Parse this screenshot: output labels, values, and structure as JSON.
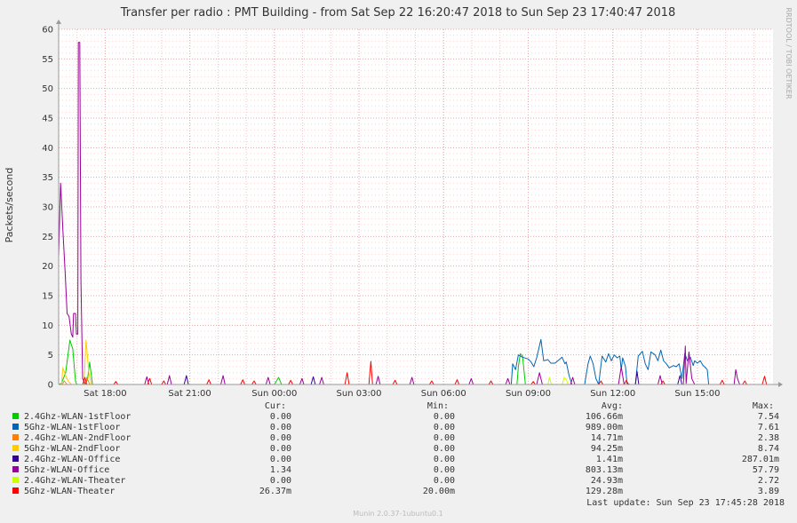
{
  "chart_data": {
    "type": "line",
    "title": "Transfer per radio : PMT Building - from Sat Sep 22 16:20:47 2018 to Sun Sep 23 17:40:47 2018",
    "ylabel": "Packets/second",
    "ylim": [
      0,
      60
    ],
    "yticks": [
      0,
      5,
      10,
      15,
      20,
      25,
      30,
      35,
      40,
      45,
      50,
      55,
      60
    ],
    "xlim": [
      16.35,
      41.68
    ],
    "xticks": [
      {
        "label": "Sat 18:00",
        "hour": 18
      },
      {
        "label": "Sat 21:00",
        "hour": 21
      },
      {
        "label": "Sun 00:00",
        "hour": 24
      },
      {
        "label": "Sun 03:00",
        "hour": 27
      },
      {
        "label": "Sun 06:00",
        "hour": 30
      },
      {
        "label": "Sun 09:00",
        "hour": 33
      },
      {
        "label": "Sun 12:00",
        "hour": 36
      },
      {
        "label": "Sun 15:00",
        "hour": 39
      }
    ],
    "grid": true,
    "series": [
      {
        "name": "2.4Ghz-WLAN-1stFloor",
        "color": "#00cc00",
        "points": [
          [
            16.35,
            0
          ],
          [
            16.45,
            0.2
          ],
          [
            16.6,
            2
          ],
          [
            16.75,
            7.5
          ],
          [
            16.85,
            6
          ],
          [
            16.95,
            0.5
          ],
          [
            17.0,
            0
          ],
          [
            17.3,
            0
          ],
          [
            17.38,
            1
          ],
          [
            17.45,
            3.8
          ],
          [
            17.55,
            0
          ],
          [
            24.0,
            0
          ],
          [
            24.15,
            1.2
          ],
          [
            24.25,
            0
          ],
          [
            32.6,
            0
          ],
          [
            32.65,
            3
          ],
          [
            32.72,
            5.2
          ],
          [
            32.8,
            4.8
          ],
          [
            32.9,
            0
          ],
          [
            41.68,
            0
          ]
        ]
      },
      {
        "name": "5Ghz-WLAN-1stFloor",
        "color": "#0066b3",
        "points": [
          [
            16.35,
            0
          ],
          [
            32.4,
            0
          ],
          [
            32.45,
            3.5
          ],
          [
            32.55,
            2.5
          ],
          [
            32.65,
            5
          ],
          [
            32.8,
            4.6
          ],
          [
            33.0,
            4.3
          ],
          [
            33.1,
            3.8
          ],
          [
            33.2,
            3
          ],
          [
            33.3,
            4.5
          ],
          [
            33.45,
            7.6
          ],
          [
            33.55,
            4
          ],
          [
            33.7,
            4.2
          ],
          [
            33.8,
            3.6
          ],
          [
            33.95,
            3.6
          ],
          [
            34.1,
            4.2
          ],
          [
            34.2,
            4.6
          ],
          [
            34.3,
            3.5
          ],
          [
            34.35,
            3.8
          ],
          [
            34.45,
            1.5
          ],
          [
            34.55,
            0
          ],
          [
            35.0,
            0
          ],
          [
            35.12,
            3.5
          ],
          [
            35.2,
            4.8
          ],
          [
            35.3,
            3.5
          ],
          [
            35.4,
            1
          ],
          [
            35.5,
            0
          ],
          [
            35.62,
            4.8
          ],
          [
            35.75,
            3.8
          ],
          [
            35.85,
            5.2
          ],
          [
            35.95,
            4
          ],
          [
            36.05,
            5
          ],
          [
            36.15,
            4.5
          ],
          [
            36.25,
            4.8
          ],
          [
            36.3,
            2.5
          ],
          [
            36.35,
            4.5
          ],
          [
            36.45,
            3
          ],
          [
            36.5,
            0.2
          ],
          [
            36.6,
            0
          ],
          [
            36.8,
            0
          ],
          [
            36.9,
            4.8
          ],
          [
            37.05,
            5.6
          ],
          [
            37.15,
            3.5
          ],
          [
            37.25,
            2.5
          ],
          [
            37.35,
            5.5
          ],
          [
            37.5,
            5
          ],
          [
            37.6,
            4
          ],
          [
            37.7,
            5.8
          ],
          [
            37.8,
            4
          ],
          [
            37.9,
            3.5
          ],
          [
            38.0,
            2.8
          ],
          [
            38.15,
            3.2
          ],
          [
            38.25,
            3
          ],
          [
            38.35,
            3.5
          ],
          [
            38.45,
            1
          ],
          [
            38.55,
            5.2
          ],
          [
            38.65,
            4
          ],
          [
            38.75,
            4.6
          ],
          [
            38.85,
            3.2
          ],
          [
            38.9,
            4
          ],
          [
            39.0,
            3.6
          ],
          [
            39.1,
            4
          ],
          [
            39.2,
            3.2
          ],
          [
            39.25,
            3
          ],
          [
            39.35,
            2.5
          ],
          [
            39.4,
            0
          ],
          [
            41.68,
            0
          ]
        ]
      },
      {
        "name": "2.4Ghz-WLAN-2ndFloor",
        "color": "#ff8000",
        "points": [
          [
            16.35,
            0
          ],
          [
            16.48,
            0
          ],
          [
            16.55,
            0.6
          ],
          [
            16.65,
            0
          ],
          [
            17.3,
            0
          ],
          [
            17.35,
            1.2
          ],
          [
            17.45,
            0
          ],
          [
            41.68,
            0
          ]
        ]
      },
      {
        "name": "5Ghz-WLAN-2ndFloor",
        "color": "#ffcc00",
        "points": [
          [
            16.35,
            0
          ],
          [
            16.45,
            0
          ],
          [
            16.5,
            2.8
          ],
          [
            16.6,
            1.5
          ],
          [
            16.7,
            0.5
          ],
          [
            16.8,
            0
          ],
          [
            17.25,
            0
          ],
          [
            17.32,
            7.5
          ],
          [
            17.42,
            2
          ],
          [
            17.5,
            0
          ],
          [
            41.68,
            0
          ]
        ]
      },
      {
        "name": "2.4Ghz-WLAN-Office",
        "color": "#330099",
        "points": [
          [
            16.35,
            0
          ],
          [
            20.8,
            0
          ],
          [
            20.88,
            1.5
          ],
          [
            20.95,
            0
          ],
          [
            25.3,
            0
          ],
          [
            25.38,
            1.3
          ],
          [
            25.45,
            0
          ],
          [
            36.8,
            0
          ],
          [
            36.86,
            2.2
          ],
          [
            36.92,
            0
          ],
          [
            38.3,
            0
          ],
          [
            38.38,
            1.5
          ],
          [
            38.45,
            0
          ],
          [
            41.68,
            0
          ]
        ]
      },
      {
        "name": "5Ghz-WLAN-Office",
        "color": "#990099",
        "points": [
          [
            16.35,
            21.5
          ],
          [
            16.42,
            34
          ],
          [
            16.5,
            26
          ],
          [
            16.58,
            19
          ],
          [
            16.65,
            12
          ],
          [
            16.72,
            11.5
          ],
          [
            16.8,
            8.5
          ],
          [
            16.85,
            8
          ],
          [
            16.88,
            12
          ],
          [
            16.95,
            12
          ],
          [
            16.98,
            8.5
          ],
          [
            17.03,
            8.5
          ],
          [
            17.05,
            57.8
          ],
          [
            17.1,
            57.8
          ],
          [
            17.14,
            17.5
          ],
          [
            17.2,
            1
          ],
          [
            17.3,
            0
          ],
          [
            19.4,
            0
          ],
          [
            19.48,
            1.3
          ],
          [
            19.55,
            0
          ],
          [
            20.2,
            0
          ],
          [
            20.28,
            1.5
          ],
          [
            20.35,
            0
          ],
          [
            22.1,
            0
          ],
          [
            22.18,
            1.5
          ],
          [
            22.25,
            0
          ],
          [
            23.7,
            0
          ],
          [
            23.78,
            1.2
          ],
          [
            23.85,
            0
          ],
          [
            24.9,
            0
          ],
          [
            24.98,
            1
          ],
          [
            25.05,
            0
          ],
          [
            25.6,
            0
          ],
          [
            25.68,
            1.2
          ],
          [
            25.75,
            0
          ],
          [
            27.6,
            0
          ],
          [
            27.68,
            1.4
          ],
          [
            27.75,
            0
          ],
          [
            28.8,
            0
          ],
          [
            28.88,
            1.2
          ],
          [
            28.95,
            0
          ],
          [
            30.9,
            0
          ],
          [
            30.98,
            1
          ],
          [
            31.05,
            0
          ],
          [
            32.2,
            0
          ],
          [
            32.28,
            1
          ],
          [
            32.35,
            0
          ],
          [
            33.3,
            0
          ],
          [
            33.4,
            2
          ],
          [
            33.5,
            0
          ],
          [
            34.5,
            0
          ],
          [
            34.58,
            1.2
          ],
          [
            34.65,
            0
          ],
          [
            36.2,
            0
          ],
          [
            36.3,
            3
          ],
          [
            36.4,
            0
          ],
          [
            37.6,
            0
          ],
          [
            37.68,
            1.5
          ],
          [
            37.75,
            0
          ],
          [
            38.5,
            0
          ],
          [
            38.57,
            6.5
          ],
          [
            38.6,
            0.2
          ],
          [
            38.7,
            5.5
          ],
          [
            38.8,
            1
          ],
          [
            38.9,
            0
          ],
          [
            40.3,
            0
          ],
          [
            40.36,
            2.5
          ],
          [
            40.42,
            1
          ],
          [
            40.5,
            0
          ],
          [
            41.68,
            0
          ]
        ]
      },
      {
        "name": "2.4Ghz-WLAN-Theater",
        "color": "#ccff00",
        "points": [
          [
            16.35,
            0
          ],
          [
            33.7,
            0
          ],
          [
            33.75,
            1.2
          ],
          [
            33.8,
            0.3
          ],
          [
            33.85,
            0
          ],
          [
            34.2,
            0
          ],
          [
            34.28,
            1.2
          ],
          [
            34.35,
            0.8
          ],
          [
            34.42,
            0
          ],
          [
            41.68,
            0
          ]
        ]
      },
      {
        "name": "5Ghz-WLAN-Theater",
        "color": "#ff0000",
        "points": [
          [
            16.35,
            0
          ],
          [
            17.2,
            0
          ],
          [
            17.28,
            1.2
          ],
          [
            17.35,
            0
          ],
          [
            18.3,
            0
          ],
          [
            18.38,
            0.5
          ],
          [
            18.45,
            0
          ],
          [
            19.5,
            0
          ],
          [
            19.58,
            1
          ],
          [
            19.65,
            0
          ],
          [
            20.0,
            0
          ],
          [
            20.08,
            0.6
          ],
          [
            20.15,
            0
          ],
          [
            21.6,
            0
          ],
          [
            21.68,
            0.8
          ],
          [
            21.75,
            0
          ],
          [
            22.8,
            0
          ],
          [
            22.88,
            0.8
          ],
          [
            22.95,
            0
          ],
          [
            23.2,
            0
          ],
          [
            23.28,
            0.6
          ],
          [
            23.35,
            0
          ],
          [
            24.5,
            0
          ],
          [
            24.58,
            0.7
          ],
          [
            24.65,
            0
          ],
          [
            26.5,
            0
          ],
          [
            26.58,
            2
          ],
          [
            26.65,
            0
          ],
          [
            27.35,
            0
          ],
          [
            27.42,
            3.9
          ],
          [
            27.48,
            0
          ],
          [
            28.2,
            0
          ],
          [
            28.28,
            0.7
          ],
          [
            28.35,
            0
          ],
          [
            29.5,
            0
          ],
          [
            29.58,
            0.6
          ],
          [
            29.65,
            0
          ],
          [
            30.4,
            0
          ],
          [
            30.48,
            0.8
          ],
          [
            30.55,
            0
          ],
          [
            31.6,
            0
          ],
          [
            31.68,
            0.6
          ],
          [
            31.75,
            0
          ],
          [
            33.1,
            0
          ],
          [
            33.18,
            0.5
          ],
          [
            33.25,
            0
          ],
          [
            35.5,
            0
          ],
          [
            35.58,
            0.6
          ],
          [
            35.65,
            0
          ],
          [
            36.4,
            0
          ],
          [
            36.48,
            0.7
          ],
          [
            36.55,
            0
          ],
          [
            37.7,
            0
          ],
          [
            37.78,
            0.6
          ],
          [
            37.85,
            0
          ],
          [
            39.8,
            0
          ],
          [
            39.88,
            0.7
          ],
          [
            39.95,
            0
          ],
          [
            40.6,
            0
          ],
          [
            40.68,
            0.6
          ],
          [
            40.75,
            0
          ],
          [
            41.3,
            0
          ],
          [
            41.38,
            1.4
          ],
          [
            41.45,
            0
          ],
          [
            41.68,
            0
          ]
        ]
      }
    ]
  },
  "legend": {
    "headers": {
      "cur": "Cur:",
      "min": "Min:",
      "avg": "Avg:",
      "max": "Max:"
    },
    "rows": [
      {
        "name": "2.4Ghz-WLAN-1stFloor",
        "cur": "0.00",
        "min": "0.00",
        "avg": "106.66m",
        "max": "7.54"
      },
      {
        "name": "5Ghz-WLAN-1stFloor",
        "cur": "0.00",
        "min": "0.00",
        "avg": "989.00m",
        "max": "7.61"
      },
      {
        "name": "2.4Ghz-WLAN-2ndFloor",
        "cur": "0.00",
        "min": "0.00",
        "avg": "14.71m",
        "max": "2.38"
      },
      {
        "name": "5Ghz-WLAN-2ndFloor",
        "cur": "0.00",
        "min": "0.00",
        "avg": "94.25m",
        "max": "8.74"
      },
      {
        "name": "2.4Ghz-WLAN-Office",
        "cur": "0.00",
        "min": "0.00",
        "avg": "1.41m",
        "max": "287.01m"
      },
      {
        "name": "5Ghz-WLAN-Office",
        "cur": "1.34",
        "min": "0.00",
        "avg": "803.13m",
        "max": "57.79"
      },
      {
        "name": "2.4Ghz-WLAN-Theater",
        "cur": "0.00",
        "min": "0.00",
        "avg": "24.93m",
        "max": "2.72"
      },
      {
        "name": "5Ghz-WLAN-Theater",
        "cur": "26.37m",
        "min": "20.00m",
        "avg": "129.28m",
        "max": "3.89"
      }
    ],
    "last_update": "Last update: Sun Sep 23 17:45:28 2018"
  },
  "side_text": "RRDTOOL / TOBI OETIKER",
  "footer": "Munin 2.0.37-1ubuntu0.1"
}
